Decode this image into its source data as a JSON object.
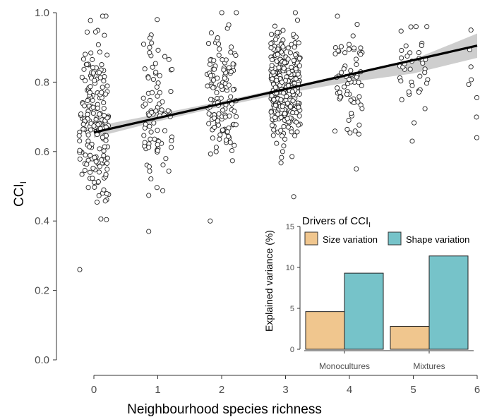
{
  "chart_data": [
    {
      "type": "scatter",
      "xlabel": "Neighbourhood species richness",
      "ylabel": "CCI",
      "ylabel_sub": "I",
      "xlim": [
        -0.5,
        6
      ],
      "ylim": [
        0,
        1
      ],
      "x_ticks": [
        "0",
        "1",
        "2",
        "3",
        "4",
        "5",
        "6"
      ],
      "y_ticks": [
        "0.0",
        "0.2",
        "0.4",
        "0.6",
        "0.8",
        "1.0"
      ],
      "grid": false,
      "trend_line": {
        "x": [
          0,
          6
        ],
        "y": [
          0.655,
          0.905
        ]
      },
      "confidence_band": {
        "x": [
          0,
          1,
          2,
          3,
          4,
          5,
          6
        ],
        "lower": [
          0.64,
          0.687,
          0.73,
          0.768,
          0.8,
          0.825,
          0.87
        ],
        "upper": [
          0.672,
          0.708,
          0.745,
          0.785,
          0.825,
          0.865,
          0.94
        ]
      },
      "groups": [
        {
          "x": 0,
          "n": 190,
          "y_min": 0.26,
          "y_max": 0.99,
          "center": 0.68,
          "spread": 0.17
        },
        {
          "x": 1,
          "n": 90,
          "y_min": 0.37,
          "y_max": 0.98,
          "center": 0.72,
          "spread": 0.14
        },
        {
          "x": 2,
          "n": 130,
          "y_min": 0.4,
          "y_max": 1.0,
          "center": 0.76,
          "spread": 0.13
        },
        {
          "x": 3,
          "n": 300,
          "y_min": 0.47,
          "y_max": 1.0,
          "center": 0.79,
          "spread": 0.11
        },
        {
          "x": 4,
          "n": 65,
          "y_min": 0.55,
          "y_max": 0.99,
          "center": 0.81,
          "spread": 0.1
        },
        {
          "x": 5,
          "n": 40,
          "y_min": 0.63,
          "y_max": 0.96,
          "center": 0.84,
          "spread": 0.08
        },
        {
          "x": 6,
          "n": 8,
          "y_min": 0.64,
          "y_max": 0.95,
          "center": 0.85,
          "spread": 0.1
        }
      ]
    },
    {
      "type": "bar",
      "title": "Drivers of CCI",
      "title_sub": "I",
      "ylabel": "Explained variance (%)",
      "categories": [
        "Monocultures",
        "Mixtures"
      ],
      "ylim": [
        0,
        15
      ],
      "y_ticks": [
        "0",
        "5",
        "10",
        "15"
      ],
      "legend_position": "top",
      "series": [
        {
          "name": "Size variation",
          "color": "#f0c68e",
          "values": [
            4.6,
            2.8
          ]
        },
        {
          "name": "Shape variation",
          "color": "#76c3c9",
          "values": [
            9.3,
            11.4
          ]
        }
      ]
    }
  ]
}
